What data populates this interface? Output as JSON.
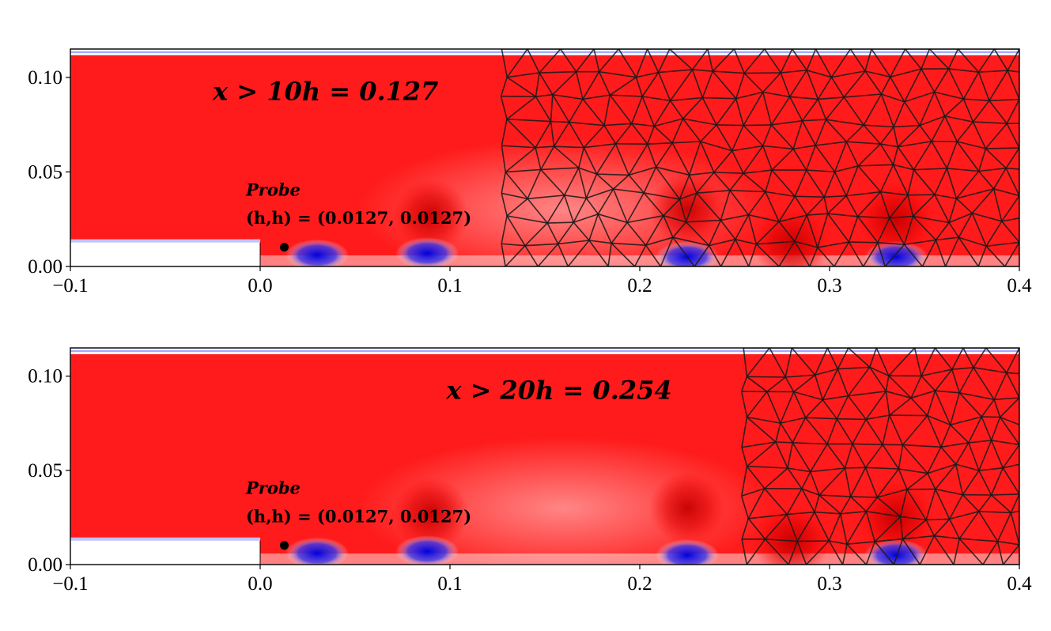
{
  "chart_data": [
    {
      "type": "heatmap",
      "title": "",
      "xlabel": "",
      "ylabel": "",
      "xlim": [
        -0.1,
        0.4
      ],
      "ylim": [
        0.0,
        0.115
      ],
      "x_ticks": [
        -0.1,
        0.0,
        0.1,
        0.2,
        0.3,
        0.4
      ],
      "x_tick_labels": [
        "−0.1",
        "0.0",
        "0.1",
        "0.2",
        "0.3",
        "0.4"
      ],
      "y_ticks": [
        0.0,
        0.05,
        0.1
      ],
      "y_tick_labels": [
        "0.00",
        "0.05",
        "0.10"
      ],
      "step": {
        "x": [
          -0.1,
          0.0
        ],
        "height": 0.0127
      },
      "probe": {
        "x": 0.0127,
        "y": 0.0127,
        "label": "Probe",
        "coords": "(h,h) = (0.0127, 0.0127)"
      },
      "mesh_start_x": 0.127,
      "annotation": "x > 10h = 0.127",
      "blobs": [
        {
          "x": 0.09,
          "y": 0.027,
          "sign": 1
        },
        {
          "x": 0.225,
          "y": 0.03,
          "sign": 1
        },
        {
          "x": 0.335,
          "y": 0.025,
          "sign": 1
        },
        {
          "x": 0.28,
          "y": 0.012,
          "sign": 1
        },
        {
          "x": 0.03,
          "y": 0.006,
          "sign": -1
        },
        {
          "x": 0.088,
          "y": 0.007,
          "sign": -1
        },
        {
          "x": 0.225,
          "y": 0.005,
          "sign": -1
        },
        {
          "x": 0.335,
          "y": 0.005,
          "sign": -1
        }
      ]
    },
    {
      "type": "heatmap",
      "title": "",
      "xlabel": "",
      "ylabel": "",
      "xlim": [
        -0.1,
        0.4
      ],
      "ylim": [
        0.0,
        0.115
      ],
      "x_ticks": [
        -0.1,
        0.0,
        0.1,
        0.2,
        0.3,
        0.4
      ],
      "x_tick_labels": [
        "−0.1",
        "0.0",
        "0.1",
        "0.2",
        "0.3",
        "0.4"
      ],
      "y_ticks": [
        0.0,
        0.05,
        0.1
      ],
      "y_tick_labels": [
        "0.00",
        "0.05",
        "0.10"
      ],
      "step": {
        "x": [
          -0.1,
          0.0
        ],
        "height": 0.0127
      },
      "probe": {
        "x": 0.0127,
        "y": 0.0127,
        "label": "Probe",
        "coords": "(h,h) = (0.0127, 0.0127)"
      },
      "mesh_start_x": 0.254,
      "annotation": "x > 20h = 0.254",
      "blobs": [
        {
          "x": 0.09,
          "y": 0.027,
          "sign": 1
        },
        {
          "x": 0.225,
          "y": 0.03,
          "sign": 1
        },
        {
          "x": 0.335,
          "y": 0.025,
          "sign": 1
        },
        {
          "x": 0.28,
          "y": 0.012,
          "sign": 1
        },
        {
          "x": 0.03,
          "y": 0.006,
          "sign": -1
        },
        {
          "x": 0.088,
          "y": 0.007,
          "sign": -1
        },
        {
          "x": 0.225,
          "y": 0.005,
          "sign": -1
        },
        {
          "x": 0.335,
          "y": 0.005,
          "sign": -1
        }
      ]
    }
  ]
}
